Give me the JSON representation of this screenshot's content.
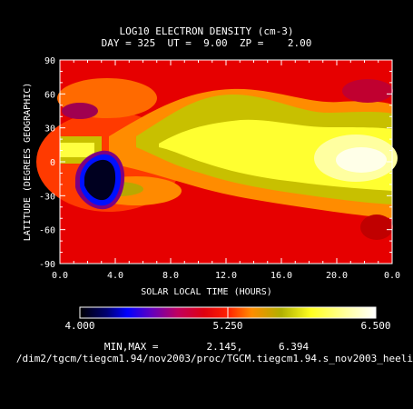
{
  "chart_data": {
    "type": "heatmap",
    "title": "LOG10 ELECTRON DENSITY (cm-3)",
    "subtitle": "DAY = 325  UT =  9.00  ZP =    2.00",
    "xlabel": "SOLAR LOCAL TIME (HOURS)",
    "ylabel": "LATITUDE (DEGREES GEOGRAPHIC)",
    "x_tick_labels": [
      "0.0",
      "4.0",
      "8.0",
      "12.0",
      "16.0",
      "20.0",
      "0.0"
    ],
    "y_tick_labels": [
      "90",
      "60",
      "30",
      "0",
      "-30",
      "-60",
      "-90"
    ],
    "y_ticks": [
      90,
      60,
      30,
      0,
      -30,
      -60,
      -90
    ],
    "xlim": [
      0,
      24
    ],
    "ylim": [
      -90,
      90
    ],
    "colorbar": {
      "min_label": "4.000",
      "mid_label": "5.250",
      "max_label": "6.500",
      "range": [
        4.0,
        6.5
      ]
    },
    "minmax_text": "MIN,MAX =        2.145,      6.394",
    "filepath": "/dim2/tgcm/tiegcm1.94/nov2003/proc/TGCM.tiegcm1.94.s_nov2003_heeli",
    "colors": {
      "background": "#000000",
      "foreground": "#ffffff"
    }
  }
}
